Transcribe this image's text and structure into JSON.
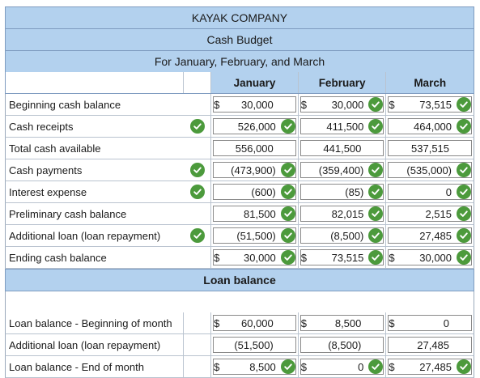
{
  "header": {
    "company": "KAYAK COMPANY",
    "title": "Cash Budget",
    "period": "For January, February, and March"
  },
  "columns": [
    "January",
    "February",
    "March"
  ],
  "cash_rows": [
    {
      "label": "Beginning cash balance",
      "label_check": false,
      "cells": [
        {
          "cur": "$",
          "val": "30,000",
          "check": false
        },
        {
          "cur": "$",
          "val": "30,000",
          "check": true
        },
        {
          "cur": "$",
          "val": "73,515",
          "check": true
        }
      ]
    },
    {
      "label": "Cash receipts",
      "label_check": true,
      "cells": [
        {
          "cur": "",
          "val": "526,000",
          "check": true
        },
        {
          "cur": "",
          "val": "411,500",
          "check": true
        },
        {
          "cur": "",
          "val": "464,000",
          "check": true
        }
      ]
    },
    {
      "label": "Total cash available",
      "label_check": false,
      "cells": [
        {
          "cur": "",
          "val": "556,000",
          "check": false
        },
        {
          "cur": "",
          "val": "441,500",
          "check": false
        },
        {
          "cur": "",
          "val": "537,515",
          "check": false
        }
      ]
    },
    {
      "label": "Cash payments",
      "label_check": true,
      "cells": [
        {
          "cur": "",
          "val": "(473,900)",
          "check": true
        },
        {
          "cur": "",
          "val": "(359,400)",
          "check": true
        },
        {
          "cur": "",
          "val": "(535,000)",
          "check": true
        }
      ]
    },
    {
      "label": "Interest expense",
      "label_check": true,
      "cells": [
        {
          "cur": "",
          "val": "(600)",
          "check": true
        },
        {
          "cur": "",
          "val": "(85)",
          "check": true
        },
        {
          "cur": "",
          "val": "0",
          "check": true
        }
      ]
    },
    {
      "label": "Preliminary cash balance",
      "label_check": false,
      "cells": [
        {
          "cur": "",
          "val": "81,500",
          "check": true
        },
        {
          "cur": "",
          "val": "82,015",
          "check": true
        },
        {
          "cur": "",
          "val": "2,515",
          "check": true
        }
      ]
    },
    {
      "label": "Additional loan (loan repayment)",
      "label_check": true,
      "cells": [
        {
          "cur": "",
          "val": "(51,500)",
          "check": true
        },
        {
          "cur": "",
          "val": "(8,500)",
          "check": true
        },
        {
          "cur": "",
          "val": "27,485",
          "check": true
        }
      ]
    },
    {
      "label": "Ending cash balance",
      "label_check": false,
      "cells": [
        {
          "cur": "$",
          "val": "30,000",
          "check": true
        },
        {
          "cur": "$",
          "val": "73,515",
          "check": true
        },
        {
          "cur": "$",
          "val": "30,000",
          "check": true
        }
      ]
    }
  ],
  "loan_section_title": "Loan balance",
  "loan_rows": [
    {
      "label": "Loan balance - Beginning of month",
      "cells": [
        {
          "cur": "$",
          "val": "60,000",
          "check": false
        },
        {
          "cur": "$",
          "val": "8,500",
          "check": false
        },
        {
          "cur": "$",
          "val": "0",
          "check": false
        }
      ]
    },
    {
      "label": "Additional loan (loan repayment)",
      "cells": [
        {
          "cur": "",
          "val": "(51,500)",
          "check": false
        },
        {
          "cur": "",
          "val": "(8,500)",
          "check": false
        },
        {
          "cur": "",
          "val": "27,485",
          "check": false
        }
      ]
    },
    {
      "label": "Loan balance - End of month",
      "cells": [
        {
          "cur": "$",
          "val": "8,500",
          "check": true
        },
        {
          "cur": "$",
          "val": "0",
          "check": true
        },
        {
          "cur": "$",
          "val": "27,485",
          "check": true
        }
      ]
    }
  ],
  "colors": {
    "header_bg": "#b3d1ee",
    "check": "#4c9a3c"
  },
  "icons": {
    "correct": "check-circle-icon"
  }
}
